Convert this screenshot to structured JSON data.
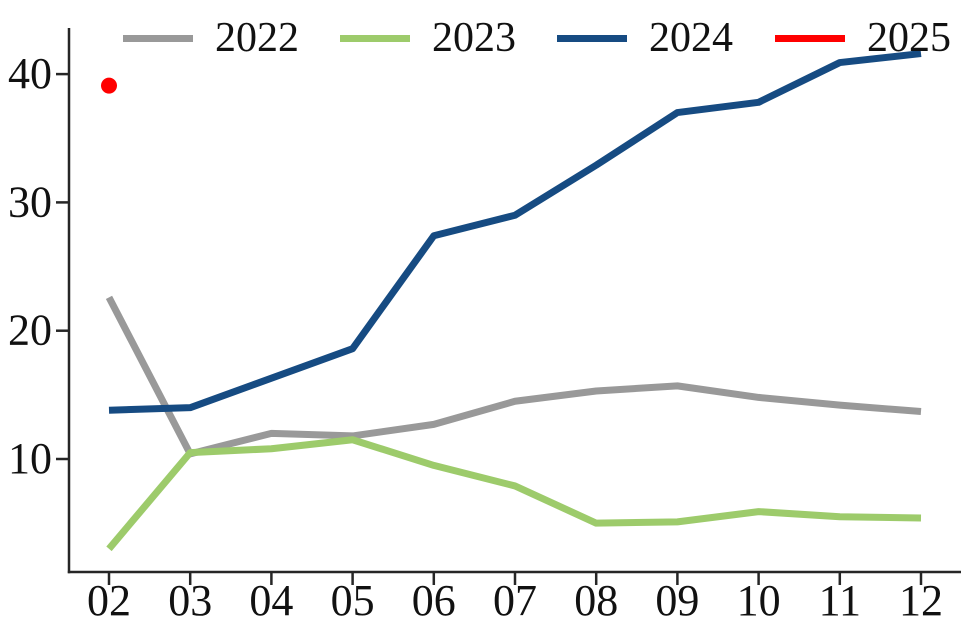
{
  "chart_data": {
    "type": "line",
    "title": "",
    "xlabel": "",
    "ylabel": "",
    "x_categories": [
      "02",
      "03",
      "04",
      "05",
      "06",
      "07",
      "08",
      "09",
      "10",
      "11",
      "12"
    ],
    "y_ticks": [
      10,
      20,
      30,
      40
    ],
    "ylim": [
      1.2,
      43.6
    ],
    "grid": false,
    "legend_position": "top",
    "axis_color": "#262626",
    "tick_label_color": "#111111",
    "series": [
      {
        "name": "2022",
        "color": "#999999",
        "style": "line",
        "values": [
          22.6,
          10.4,
          12.0,
          11.8,
          12.7,
          14.5,
          15.3,
          15.7,
          14.8,
          14.2,
          13.7
        ]
      },
      {
        "name": "2023",
        "color": "#9dcb6b",
        "style": "line",
        "values": [
          3.0,
          10.5,
          10.8,
          11.5,
          9.5,
          7.9,
          5.0,
          5.1,
          5.9,
          5.5,
          5.4
        ]
      },
      {
        "name": "2024",
        "color": "#164b82",
        "style": "line",
        "values": [
          13.8,
          14.0,
          16.3,
          18.6,
          27.4,
          29.0,
          32.9,
          37.0,
          37.8,
          40.9,
          41.6
        ]
      },
      {
        "name": "2025",
        "color": "#ff0000",
        "style": "point",
        "values": [
          39.1,
          null,
          null,
          null,
          null,
          null,
          null,
          null,
          null,
          null,
          null
        ]
      }
    ]
  }
}
